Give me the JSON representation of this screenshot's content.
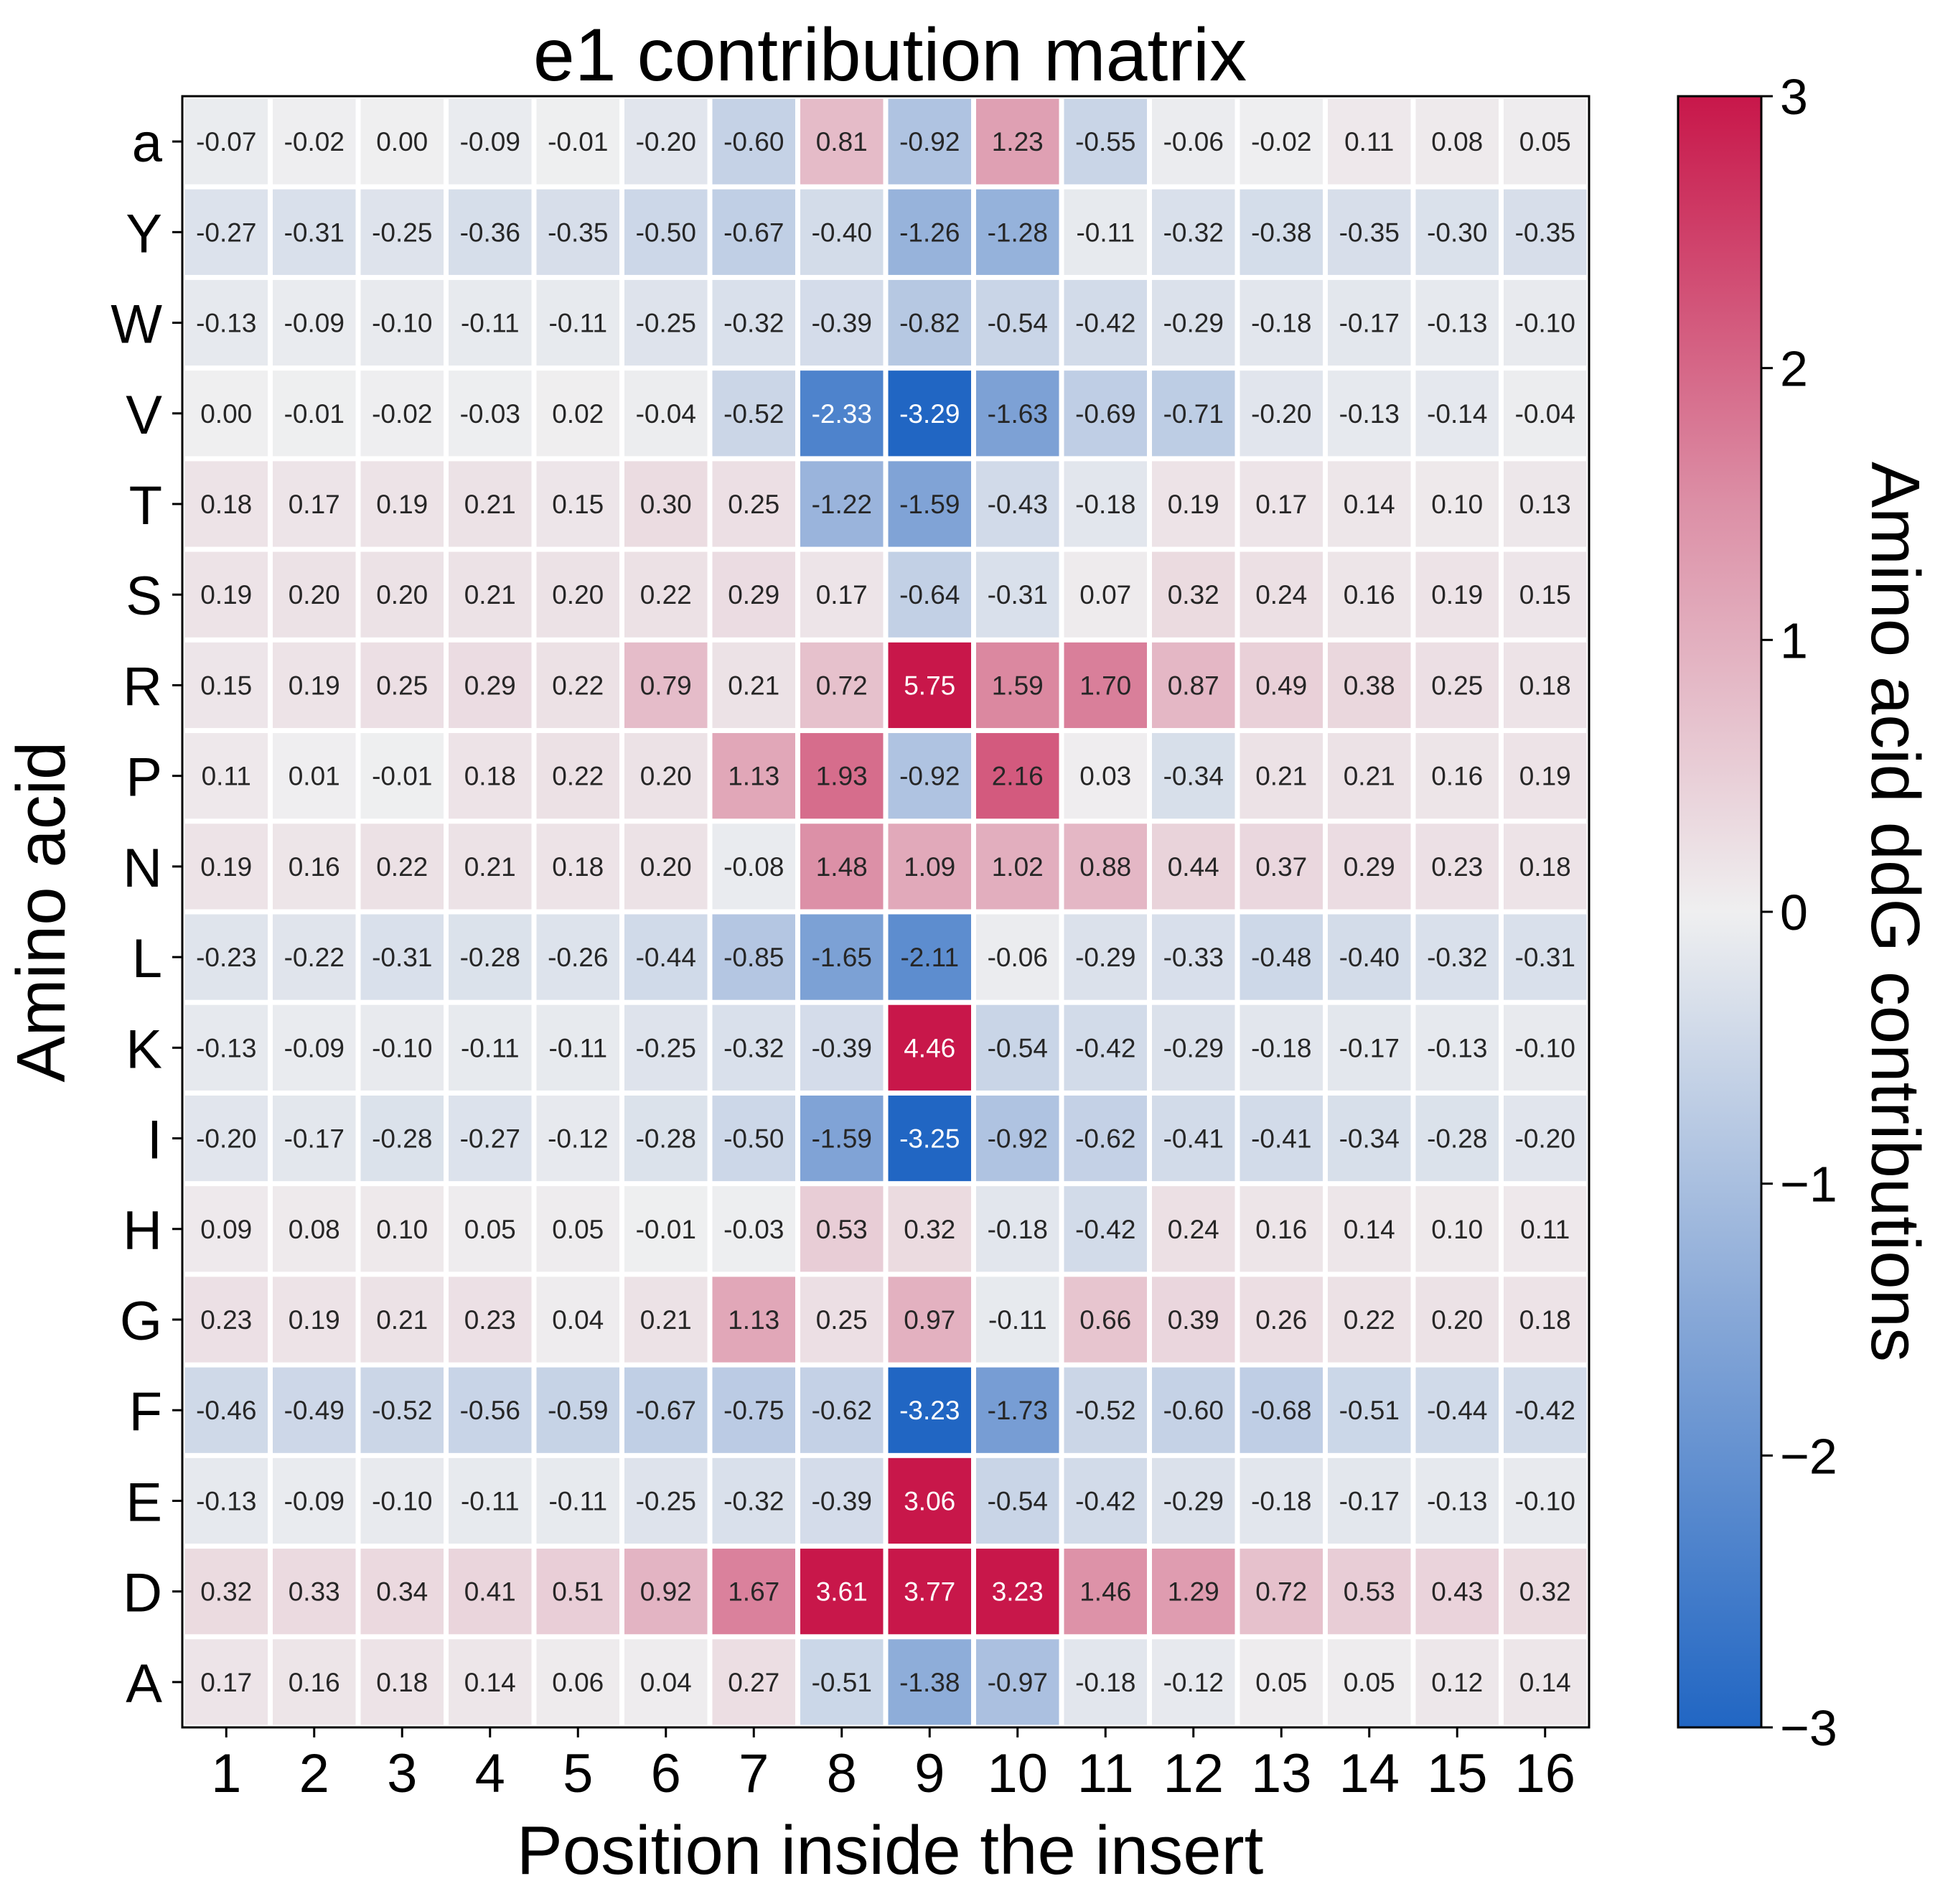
{
  "title": "e1 contribution matrix",
  "chart_data": {
    "type": "heatmap",
    "title": "e1 contribution matrix",
    "xlabel": "Position inside the insert",
    "ylabel": "Amino acid",
    "x_categories": [
      "1",
      "2",
      "3",
      "4",
      "5",
      "6",
      "7",
      "8",
      "9",
      "10",
      "11",
      "12",
      "13",
      "14",
      "15",
      "16"
    ],
    "y_categories": [
      "a",
      "Y",
      "W",
      "V",
      "T",
      "S",
      "R",
      "P",
      "N",
      "L",
      "K",
      "I",
      "H",
      "G",
      "F",
      "E",
      "D",
      "A"
    ],
    "values": [
      [
        -0.07,
        -0.02,
        0.0,
        -0.09,
        -0.01,
        -0.2,
        -0.6,
        0.81,
        -0.92,
        1.23,
        -0.55,
        -0.06,
        -0.02,
        0.11,
        0.08,
        0.05
      ],
      [
        -0.27,
        -0.31,
        -0.25,
        -0.36,
        -0.35,
        -0.5,
        -0.67,
        -0.4,
        -1.26,
        -1.28,
        -0.11,
        -0.32,
        -0.38,
        -0.35,
        -0.3,
        -0.35
      ],
      [
        -0.13,
        -0.09,
        -0.1,
        -0.11,
        -0.11,
        -0.25,
        -0.32,
        -0.39,
        -0.82,
        -0.54,
        -0.42,
        -0.29,
        -0.18,
        -0.17,
        -0.13,
        -0.1
      ],
      [
        -0.0,
        -0.01,
        -0.02,
        -0.03,
        0.02,
        -0.04,
        -0.52,
        -2.33,
        -3.29,
        -1.63,
        -0.69,
        -0.71,
        -0.2,
        -0.13,
        -0.14,
        -0.04
      ],
      [
        0.18,
        0.17,
        0.19,
        0.21,
        0.15,
        0.3,
        0.25,
        -1.22,
        -1.59,
        -0.43,
        -0.18,
        0.19,
        0.17,
        0.14,
        0.1,
        0.13
      ],
      [
        0.19,
        0.2,
        0.2,
        0.21,
        0.2,
        0.22,
        0.29,
        0.17,
        -0.64,
        -0.31,
        0.07,
        0.32,
        0.24,
        0.16,
        0.19,
        0.15
      ],
      [
        0.15,
        0.19,
        0.25,
        0.29,
        0.22,
        0.79,
        0.21,
        0.72,
        5.75,
        1.59,
        1.7,
        0.87,
        0.49,
        0.38,
        0.25,
        0.18
      ],
      [
        0.11,
        0.01,
        -0.01,
        0.18,
        0.22,
        0.2,
        1.13,
        1.93,
        -0.92,
        2.16,
        0.03,
        -0.34,
        0.21,
        0.21,
        0.16,
        0.19
      ],
      [
        0.19,
        0.16,
        0.22,
        0.21,
        0.18,
        0.2,
        -0.08,
        1.48,
        1.09,
        1.02,
        0.88,
        0.44,
        0.37,
        0.29,
        0.23,
        0.18
      ],
      [
        -0.23,
        -0.22,
        -0.31,
        -0.28,
        -0.26,
        -0.44,
        -0.85,
        -1.65,
        -2.11,
        -0.06,
        -0.29,
        -0.33,
        -0.48,
        -0.4,
        -0.32,
        -0.31
      ],
      [
        -0.13,
        -0.09,
        -0.1,
        -0.11,
        -0.11,
        -0.25,
        -0.32,
        -0.39,
        4.46,
        -0.54,
        -0.42,
        -0.29,
        -0.18,
        -0.17,
        -0.13,
        -0.1
      ],
      [
        -0.2,
        -0.17,
        -0.28,
        -0.27,
        -0.12,
        -0.28,
        -0.5,
        -1.59,
        -3.25,
        -0.92,
        -0.62,
        -0.41,
        -0.41,
        -0.34,
        -0.28,
        -0.2
      ],
      [
        0.09,
        0.08,
        0.1,
        0.05,
        0.05,
        -0.01,
        -0.03,
        0.53,
        0.32,
        -0.18,
        -0.42,
        0.24,
        0.16,
        0.14,
        0.1,
        0.11
      ],
      [
        0.23,
        0.19,
        0.21,
        0.23,
        0.04,
        0.21,
        1.13,
        0.25,
        0.97,
        -0.11,
        0.66,
        0.39,
        0.26,
        0.22,
        0.2,
        0.18
      ],
      [
        -0.46,
        -0.49,
        -0.52,
        -0.56,
        -0.59,
        -0.67,
        -0.75,
        -0.62,
        -3.23,
        -1.73,
        -0.52,
        -0.6,
        -0.68,
        -0.51,
        -0.44,
        -0.42
      ],
      [
        -0.13,
        -0.09,
        -0.1,
        -0.11,
        -0.11,
        -0.25,
        -0.32,
        -0.39,
        3.06,
        -0.54,
        -0.42,
        -0.29,
        -0.18,
        -0.17,
        -0.13,
        -0.1
      ],
      [
        0.32,
        0.33,
        0.34,
        0.41,
        0.51,
        0.92,
        1.67,
        3.61,
        3.77,
        3.23,
        1.46,
        1.29,
        0.72,
        0.53,
        0.43,
        0.32
      ],
      [
        0.17,
        0.16,
        0.18,
        0.14,
        0.06,
        0.04,
        0.27,
        -0.51,
        -1.38,
        -0.97,
        -0.18,
        -0.12,
        0.05,
        0.05,
        0.12,
        0.14
      ]
    ],
    "colorbar": {
      "label": "Amino acid ddG contributions",
      "range": [
        -3,
        3
      ],
      "ticks": [
        3,
        2,
        1,
        0,
        -1,
        -2,
        -3
      ],
      "tick_labels": [
        "3",
        "2",
        "1",
        "0",
        "−1",
        "−2",
        "−3"
      ]
    },
    "colors": {
      "low": "#2166c3",
      "mid": "#efeff0",
      "high": "#c8174a"
    },
    "annotations": true,
    "grid": false
  }
}
